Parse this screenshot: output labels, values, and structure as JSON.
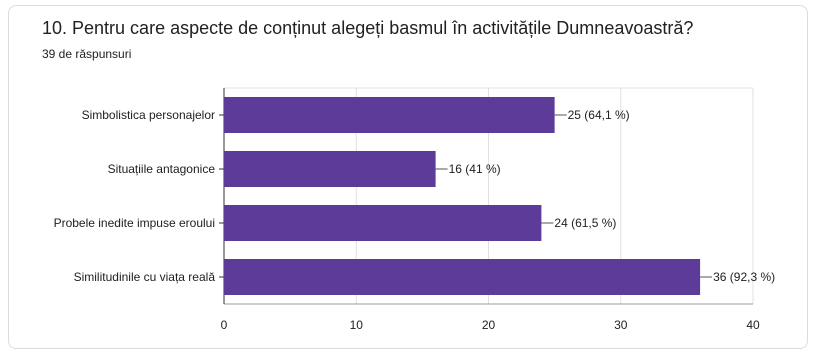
{
  "header": {
    "title": "10. Pentru care aspecte de conținut alegeți basmul în activitățile Dumneavoastră?",
    "responses": "39 de răspunsuri"
  },
  "colors": {
    "bar": "#5c3b99",
    "grid": "#e0e0e0",
    "axis": "#9e9e9e",
    "text": "#202124"
  },
  "chart_data": {
    "type": "bar",
    "orientation": "horizontal",
    "categories": [
      "Simbolistica personajelor",
      "Situațiile antagonice",
      "Probele inedite impuse eroului",
      "Similitudinile cu viața reală"
    ],
    "values": [
      25,
      16,
      24,
      36
    ],
    "data_labels": [
      "25 (64,1 %)",
      "16 (41 %)",
      "24 (61,5 %)",
      "36 (92,3 %)"
    ],
    "xlim": [
      0,
      40
    ],
    "xticks": [
      0,
      10,
      20,
      30,
      40
    ],
    "grid": true
  }
}
